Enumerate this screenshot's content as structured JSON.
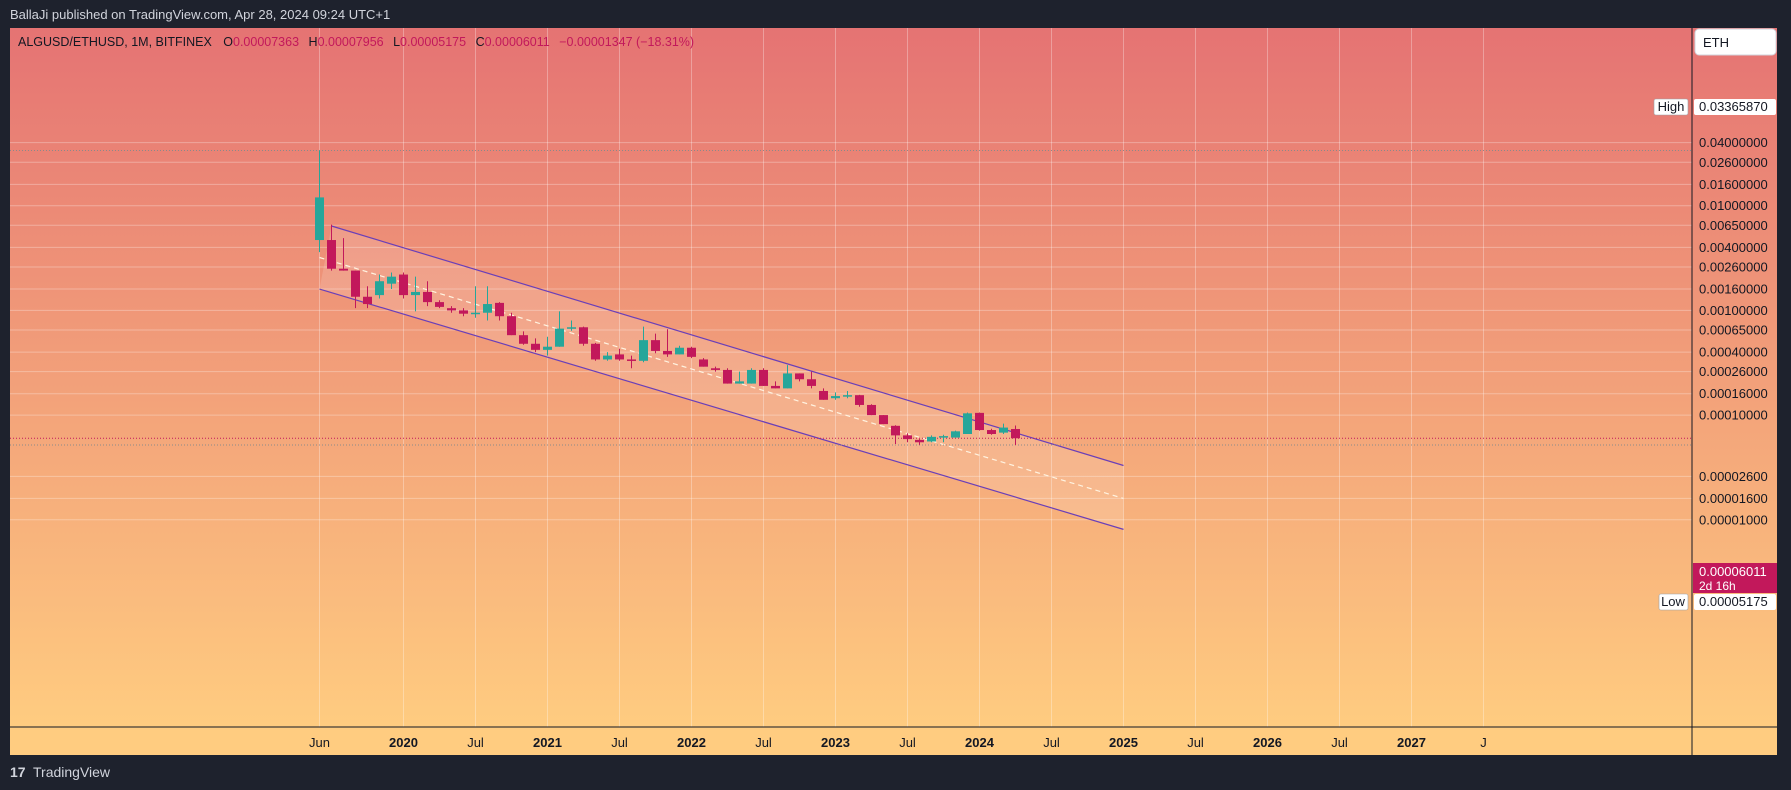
{
  "header": {
    "published": "BallaJi published on TradingView.com, Apr 28, 2024 09:24 UTC+1"
  },
  "footer": {
    "logo": "17",
    "brand": "TradingView"
  },
  "chart_data": {
    "type": "candlestick",
    "symbol": "ALGUSD/ETHUSD, 1M, BITFINEX",
    "legend": {
      "o_label": "O",
      "o_value": "0.00007363",
      "h_label": "H",
      "h_value": "0.00007956",
      "l_label": "L",
      "l_value": "0.00005175",
      "c_label": "C",
      "c_value": "0.00006011",
      "change": "−0.00001347 (−18.31%)"
    },
    "currency_button": "ETH",
    "y_scale": "log",
    "y_ticks": [
      "0.04000000",
      "0.02600000",
      "0.01600000",
      "0.01000000",
      "0.00650000",
      "0.00400000",
      "0.00260000",
      "0.00160000",
      "0.00100000",
      "0.00065000",
      "0.00040000",
      "0.00026000",
      "0.00016000",
      "0.00010000",
      "0.00002600",
      "0.00001600",
      "0.00001000"
    ],
    "y_tick_values": [
      0.04,
      0.026,
      0.016,
      0.01,
      0.0065,
      0.004,
      0.0026,
      0.0016,
      0.001,
      0.00065,
      0.0004,
      0.00026,
      0.00016,
      0.0001,
      2.6e-05,
      1.6e-05,
      1e-05
    ],
    "x_ticks": [
      "Jun",
      "2020",
      "Jul",
      "2021",
      "Jul",
      "2022",
      "Jul",
      "2023",
      "Jul",
      "2024",
      "Jul",
      "2025",
      "Jul",
      "2026",
      "Jul",
      "2027",
      "J"
    ],
    "x_tick_dates": [
      "2019-06",
      "2020-01",
      "2020-07",
      "2021-01",
      "2021-07",
      "2022-01",
      "2022-07",
      "2023-01",
      "2023-07",
      "2024-01",
      "2024-07",
      "2025-01",
      "2025-07",
      "2026-01",
      "2026-07",
      "2027-01",
      "2027-07"
    ],
    "high_marker": {
      "label": "High",
      "value": "0.03365870"
    },
    "low_marker": {
      "label": "Low",
      "value": "0.00005175"
    },
    "last_price": {
      "value": "0.00006011",
      "countdown": "2d 16h"
    },
    "colors": {
      "up": "#26a69a",
      "down": "#c2185b",
      "channel": "#6a3fb8",
      "bg_top": "#e57373",
      "bg_bottom": "#ffcc80"
    },
    "channel": {
      "upper": [
        {
          "date": "2019-07",
          "value": 0.0064
        },
        {
          "date": "2025-01",
          "value": 3.3e-05
        }
      ],
      "lower": [
        {
          "date": "2019-06",
          "value": 0.0016
        },
        {
          "date": "2025-01",
          "value": 8.1e-06
        }
      ],
      "mid": [
        {
          "date": "2019-06",
          "value": 0.0032
        },
        {
          "date": "2025-01",
          "value": 1.6e-05
        }
      ]
    },
    "candles": [
      {
        "date": "2019-06",
        "o": 0.0047,
        "h": 0.0337,
        "l": 0.0036,
        "c": 0.012
      },
      {
        "date": "2019-07",
        "o": 0.0047,
        "h": 0.0066,
        "l": 0.0024,
        "c": 0.0025
      },
      {
        "date": "2019-08",
        "o": 0.0025,
        "h": 0.0049,
        "l": 0.0024,
        "c": 0.0024
      },
      {
        "date": "2019-09",
        "o": 0.0024,
        "h": 0.0024,
        "l": 0.00105,
        "c": 0.00135
      },
      {
        "date": "2019-10",
        "o": 0.00135,
        "h": 0.0017,
        "l": 0.00105,
        "c": 0.00115
      },
      {
        "date": "2019-11",
        "o": 0.0014,
        "h": 0.0022,
        "l": 0.0013,
        "c": 0.0019
      },
      {
        "date": "2019-12",
        "o": 0.0018,
        "h": 0.0023,
        "l": 0.0016,
        "c": 0.0021
      },
      {
        "date": "2020-01",
        "o": 0.0022,
        "h": 0.0023,
        "l": 0.0013,
        "c": 0.0014
      },
      {
        "date": "2020-02",
        "o": 0.0014,
        "h": 0.0021,
        "l": 0.00098,
        "c": 0.0015
      },
      {
        "date": "2020-03",
        "o": 0.0015,
        "h": 0.0019,
        "l": 0.0011,
        "c": 0.0012
      },
      {
        "date": "2020-04",
        "o": 0.0012,
        "h": 0.00125,
        "l": 0.00105,
        "c": 0.00108
      },
      {
        "date": "2020-05",
        "o": 0.00105,
        "h": 0.0011,
        "l": 0.00095,
        "c": 0.001
      },
      {
        "date": "2020-06",
        "o": 0.001,
        "h": 0.00105,
        "l": 0.00088,
        "c": 0.00093
      },
      {
        "date": "2020-07",
        "o": 0.00093,
        "h": 0.0017,
        "l": 0.00085,
        "c": 0.00095
      },
      {
        "date": "2020-08",
        "o": 0.00095,
        "h": 0.0017,
        "l": 0.0008,
        "c": 0.00115
      },
      {
        "date": "2020-09",
        "o": 0.00118,
        "h": 0.0012,
        "l": 0.0008,
        "c": 0.00088
      },
      {
        "date": "2020-10",
        "o": 0.00088,
        "h": 0.00095,
        "l": 0.00058,
        "c": 0.00058
      },
      {
        "date": "2020-11",
        "o": 0.00058,
        "h": 0.00063,
        "l": 0.00047,
        "c": 0.00048
      },
      {
        "date": "2020-12",
        "o": 0.00048,
        "h": 0.00054,
        "l": 0.0004,
        "c": 0.00042
      },
      {
        "date": "2021-01",
        "o": 0.00042,
        "h": 0.00056,
        "l": 0.00037,
        "c": 0.00045
      },
      {
        "date": "2021-02",
        "o": 0.00045,
        "h": 0.00098,
        "l": 0.00045,
        "c": 0.00067
      },
      {
        "date": "2021-03",
        "o": 0.00067,
        "h": 0.0008,
        "l": 0.00064,
        "c": 0.00069
      },
      {
        "date": "2021-04",
        "o": 0.00069,
        "h": 0.0007,
        "l": 0.00046,
        "c": 0.00048
      },
      {
        "date": "2021-05",
        "o": 0.00048,
        "h": 0.00049,
        "l": 0.00033,
        "c": 0.00034
      },
      {
        "date": "2021-06",
        "o": 0.00034,
        "h": 0.0004,
        "l": 0.00033,
        "c": 0.00037
      },
      {
        "date": "2021-07",
        "o": 0.00038,
        "h": 0.00043,
        "l": 0.00033,
        "c": 0.00034
      },
      {
        "date": "2021-08",
        "o": 0.00034,
        "h": 0.00037,
        "l": 0.00028,
        "c": 0.00033
      },
      {
        "date": "2021-09",
        "o": 0.00033,
        "h": 0.0007,
        "l": 0.00032,
        "c": 0.00052
      },
      {
        "date": "2021-10",
        "o": 0.00052,
        "h": 0.0006,
        "l": 0.00039,
        "c": 0.00041
      },
      {
        "date": "2021-11",
        "o": 0.00041,
        "h": 0.00066,
        "l": 0.00036,
        "c": 0.00038
      },
      {
        "date": "2021-12",
        "o": 0.00038,
        "h": 0.00046,
        "l": 0.00038,
        "c": 0.00044
      },
      {
        "date": "2022-01",
        "o": 0.00044,
        "h": 0.00045,
        "l": 0.00035,
        "c": 0.00036
      },
      {
        "date": "2022-02",
        "o": 0.00034,
        "h": 0.00035,
        "l": 0.00029,
        "c": 0.00029
      },
      {
        "date": "2022-03",
        "o": 0.00028,
        "h": 0.00029,
        "l": 0.00026,
        "c": 0.00027
      },
      {
        "date": "2022-04",
        "o": 0.00027,
        "h": 0.00028,
        "l": 0.0002,
        "c": 0.0002
      },
      {
        "date": "2022-05",
        "o": 0.0002,
        "h": 0.00026,
        "l": 0.0002,
        "c": 0.00021
      },
      {
        "date": "2022-06",
        "o": 0.0002,
        "h": 0.00028,
        "l": 0.0002,
        "c": 0.00027
      },
      {
        "date": "2022-07",
        "o": 0.00027,
        "h": 0.00028,
        "l": 0.00019,
        "c": 0.00019
      },
      {
        "date": "2022-08",
        "o": 0.00019,
        "h": 0.00021,
        "l": 0.00018,
        "c": 0.00018
      },
      {
        "date": "2022-09",
        "o": 0.00018,
        "h": 0.0003,
        "l": 0.00018,
        "c": 0.00025
      },
      {
        "date": "2022-10",
        "o": 0.00025,
        "h": 0.00025,
        "l": 0.00021,
        "c": 0.00022
      },
      {
        "date": "2022-11",
        "o": 0.00022,
        "h": 0.00026,
        "l": 0.00018,
        "c": 0.00019
      },
      {
        "date": "2022-12",
        "o": 0.00017,
        "h": 0.00018,
        "l": 0.00014,
        "c": 0.00014
      },
      {
        "date": "2023-01",
        "o": 0.000145,
        "h": 0.000165,
        "l": 0.00014,
        "c": 0.000152
      },
      {
        "date": "2023-02",
        "o": 0.000155,
        "h": 0.00017,
        "l": 0.000145,
        "c": 0.000155
      },
      {
        "date": "2023-03",
        "o": 0.000155,
        "h": 0.000156,
        "l": 0.00012,
        "c": 0.000125
      },
      {
        "date": "2023-04",
        "o": 0.000125,
        "h": 0.000127,
        "l": 0.0001,
        "c": 0.0001
      },
      {
        "date": "2023-05",
        "o": 0.0001,
        "h": 0.0001,
        "l": 8.2e-05,
        "c": 8.2e-05
      },
      {
        "date": "2023-06",
        "o": 7.9e-05,
        "h": 8e-05,
        "l": 5.3e-05,
        "c": 6.4e-05
      },
      {
        "date": "2023-07",
        "o": 6.4e-05,
        "h": 6.7e-05,
        "l": 5.5e-05,
        "c": 5.9e-05
      },
      {
        "date": "2023-08",
        "o": 5.8e-05,
        "h": 5.9e-05,
        "l": 5.2e-05,
        "c": 5.5e-05
      },
      {
        "date": "2023-09",
        "o": 5.6e-05,
        "h": 6.4e-05,
        "l": 5.5e-05,
        "c": 6.2e-05
      },
      {
        "date": "2023-10",
        "o": 6.1e-05,
        "h": 6.5e-05,
        "l": 5.5e-05,
        "c": 6.3e-05
      },
      {
        "date": "2023-11",
        "o": 6.1e-05,
        "h": 7.1e-05,
        "l": 6.1e-05,
        "c": 7e-05
      },
      {
        "date": "2023-12",
        "o": 6.6e-05,
        "h": 0.000106,
        "l": 6.6e-05,
        "c": 0.000104
      },
      {
        "date": "2024-01",
        "o": 0.000105,
        "h": 0.000106,
        "l": 7.1e-05,
        "c": 7.2e-05
      },
      {
        "date": "2024-02",
        "o": 7.2e-05,
        "h": 7.4e-05,
        "l": 6.5e-05,
        "c": 6.6e-05
      },
      {
        "date": "2024-03",
        "o": 6.8e-05,
        "h": 8.3e-05,
        "l": 6.6e-05,
        "c": 7.6e-05
      },
      {
        "date": "2024-04",
        "o": 7.363e-05,
        "h": 7.956e-05,
        "l": 5.175e-05,
        "c": 6.011e-05
      }
    ]
  }
}
